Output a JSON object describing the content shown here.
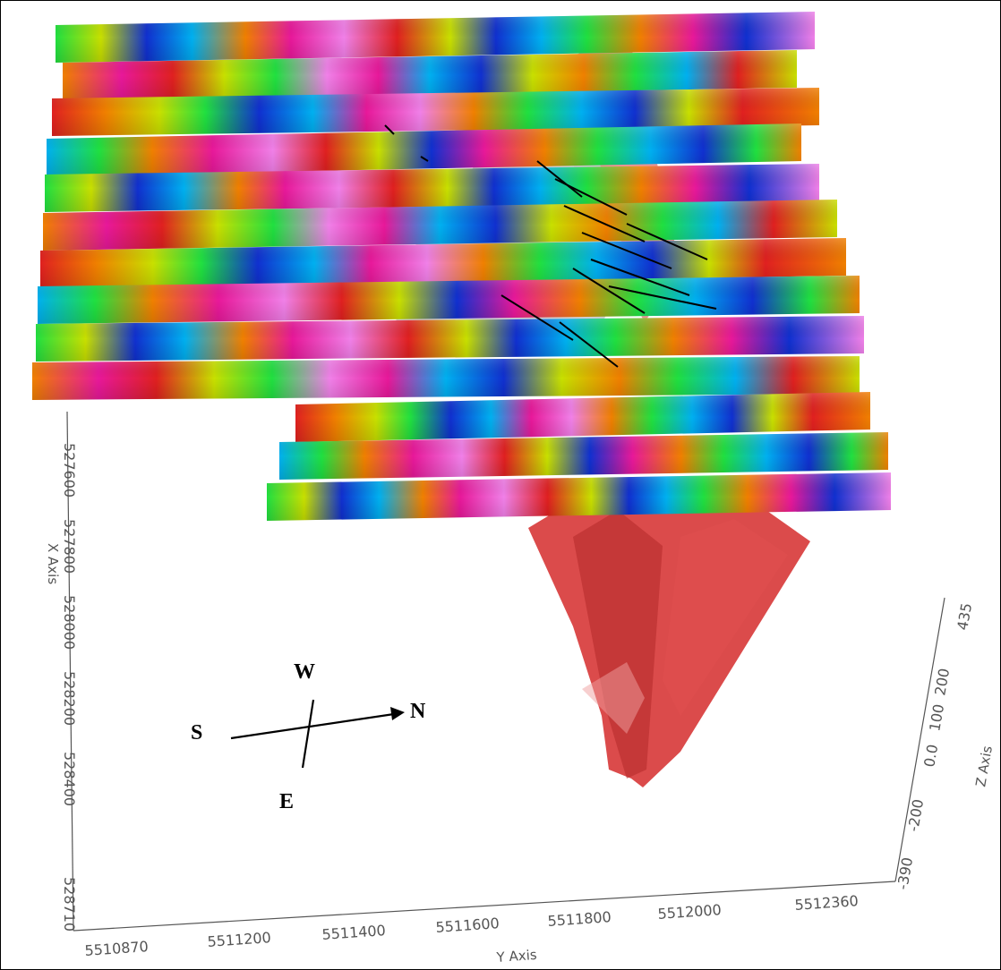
{
  "axes": {
    "x_axis": {
      "label": "X Axis",
      "ticks": [
        "527600",
        "527800",
        "528000",
        "528200",
        "528400",
        "528710"
      ]
    },
    "y_axis": {
      "label": "Y Axis",
      "ticks": [
        "5510870",
        "5511200",
        "5511400",
        "5511600",
        "5511800",
        "5512000",
        "5512360"
      ]
    },
    "z_axis": {
      "label": "Z Axis",
      "ticks": [
        "-390",
        "-200",
        "0.0",
        "100",
        "200",
        "435"
      ]
    }
  },
  "compass": {
    "north": "N",
    "south": "S",
    "east": "E",
    "west": "W"
  },
  "colors": {
    "axis": "#555555",
    "orebody": "#d83c3c",
    "fault_surface": "#c8c8cc",
    "slice_ramp": [
      "#1030d0",
      "#00b0f0",
      "#20e040",
      "#c8e000",
      "#f08000",
      "#e02020",
      "#e8189a",
      "#f080e8"
    ]
  }
}
